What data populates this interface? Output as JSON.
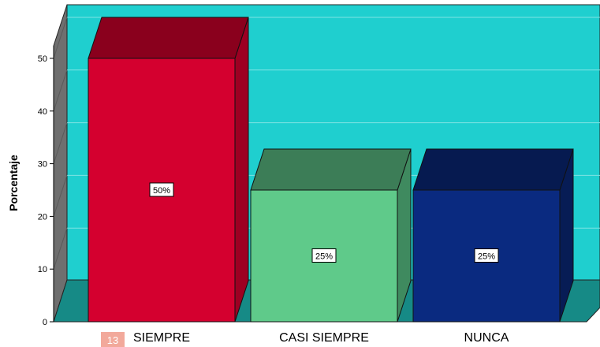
{
  "chart_data": {
    "type": "bar",
    "categories": [
      "SIEMPRE",
      "CASI SIEMPRE",
      "NUNCA"
    ],
    "values": [
      50,
      25,
      25
    ],
    "data_labels": [
      "50%",
      "25%",
      "25%"
    ],
    "ylabel": "Porcentaje",
    "ylim": [
      0,
      55
    ],
    "yticks": [
      0,
      10,
      20,
      30,
      40,
      50
    ],
    "grid": true,
    "style": "3d",
    "colors": {
      "wall": "#1fcfcf",
      "floor": "#168a86",
      "side_wall": "#6f6f6f",
      "bars_front": [
        "#d4002f",
        "#5fca8a",
        "#0a2a80"
      ],
      "bars_top": [
        "#8a001d",
        "#3c7d57",
        "#061a50"
      ],
      "bars_side": [
        "#9d0022",
        "#3f8a5f",
        "#071c55"
      ]
    }
  },
  "page_marker": "13"
}
